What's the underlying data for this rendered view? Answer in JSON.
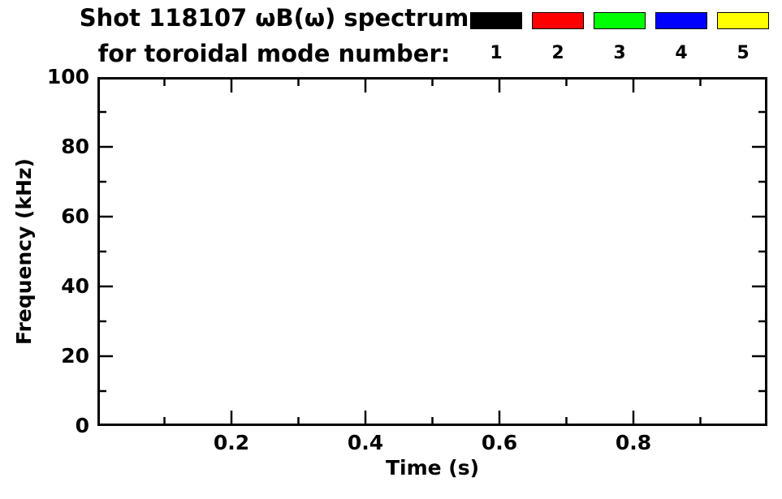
{
  "header": {
    "title_line1": "Shot 118107 ωB(ω) spectrum",
    "title_line2": "for toroidal mode number:"
  },
  "legend": {
    "entries": [
      {
        "label": "1",
        "color": "#000000"
      },
      {
        "label": "2",
        "color": "#ff0000"
      },
      {
        "label": "3",
        "color": "#00ff00"
      },
      {
        "label": "4",
        "color": "#0000ff"
      },
      {
        "label": "5",
        "color": "#ffff00"
      }
    ]
  },
  "chart_data": {
    "type": "scatter",
    "title": "Shot 118107 ωB(ω) spectrum",
    "subtitle": "for toroidal mode number: 1 2 3 4 5",
    "xlabel": "Time (s)",
    "ylabel": "Frequency (kHz)",
    "xlim": [
      0.0,
      1.0
    ],
    "ylim": [
      0,
      100
    ],
    "x_major_ticks": [
      0.2,
      0.4,
      0.6,
      0.8
    ],
    "x_tick_labels": [
      "0.2",
      "0.4",
      "0.6",
      "0.8"
    ],
    "x_minor_ticks": [
      0.1,
      0.3,
      0.5,
      0.7,
      0.9
    ],
    "y_major_ticks": [
      0,
      20,
      40,
      60,
      80,
      100
    ],
    "y_tick_labels": [
      "0",
      "20",
      "40",
      "60",
      "80",
      "100"
    ],
    "y_minor_ticks": [
      10,
      30,
      50,
      70,
      90
    ],
    "grid": false,
    "frame": "box-with-inward-ticks",
    "legend_position": "top-right",
    "series": [
      {
        "name": "n=1",
        "color": "#000000",
        "points": []
      },
      {
        "name": "n=2",
        "color": "#ff0000",
        "points": []
      },
      {
        "name": "n=3",
        "color": "#00ff00",
        "points": []
      },
      {
        "name": "n=4",
        "color": "#0000ff",
        "points": []
      },
      {
        "name": "n=5",
        "color": "#ffff00",
        "points": []
      }
    ]
  }
}
